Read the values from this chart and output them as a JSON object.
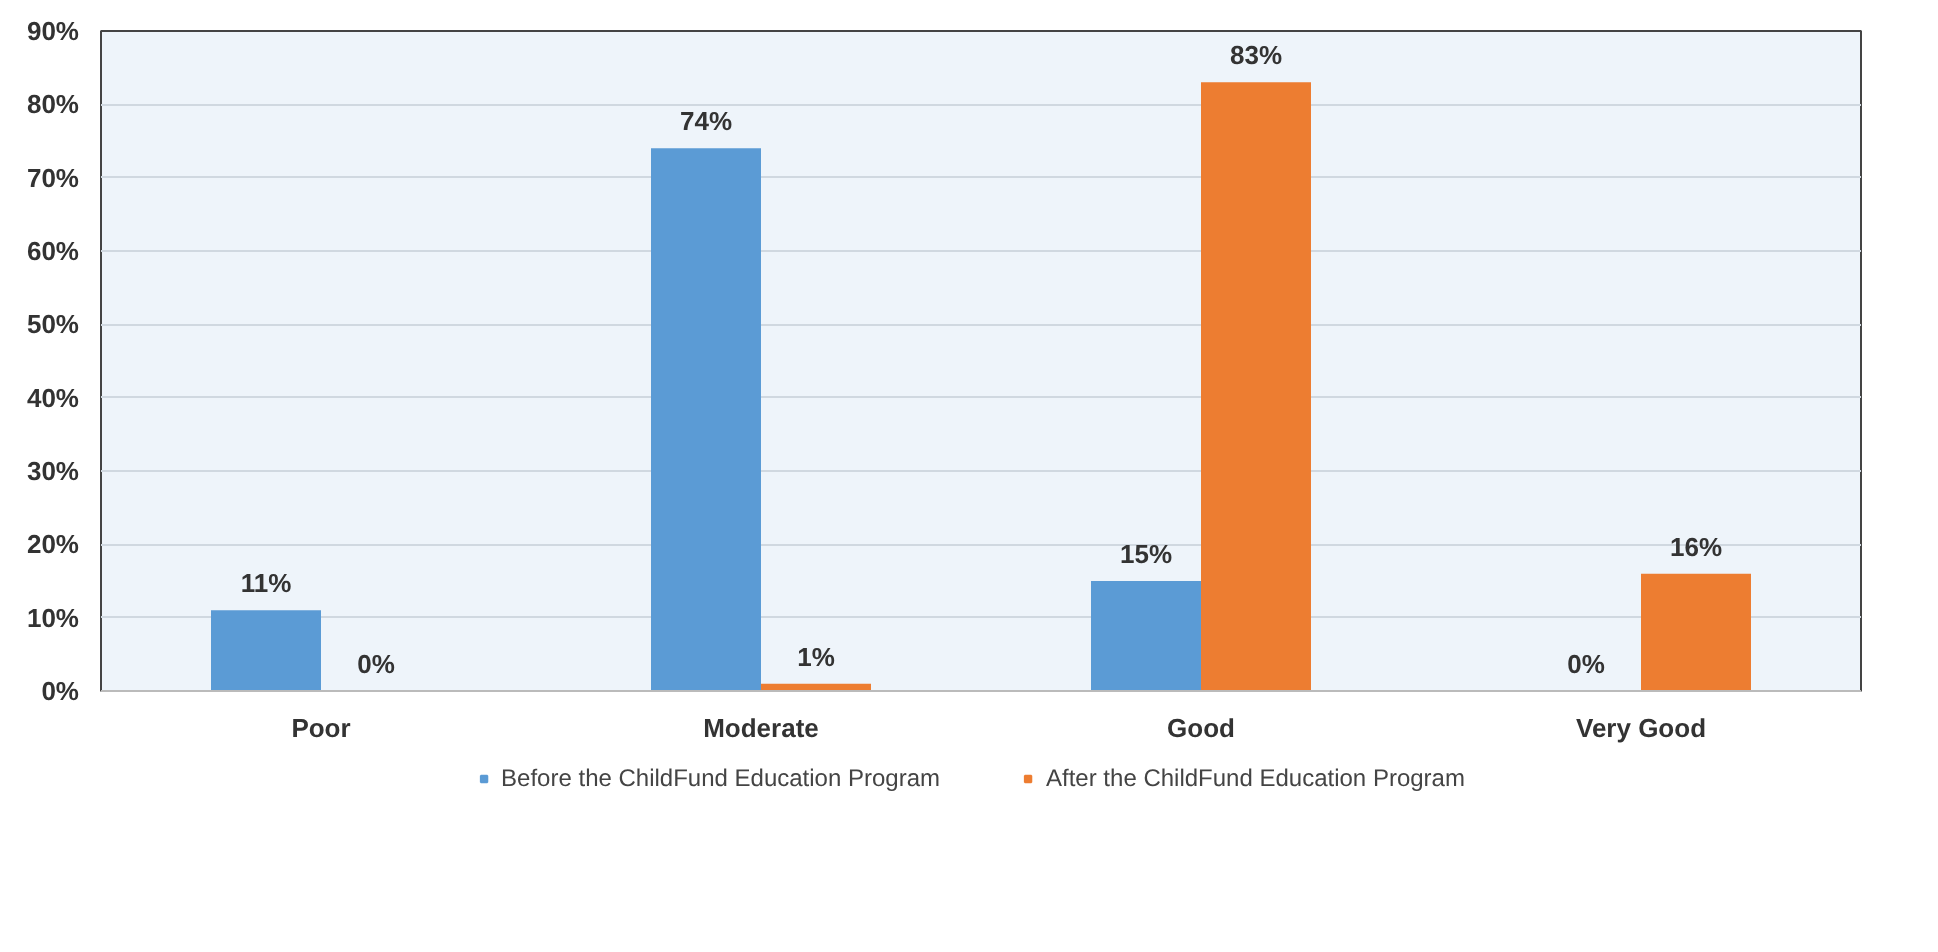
{
  "chart_data": {
    "type": "bar",
    "categories": [
      "Poor",
      "Moderate",
      "Good",
      "Very Good"
    ],
    "series": [
      {
        "name": "Before the ChildFund Education Program",
        "color": "#5b9bd5",
        "values": [
          11,
          74,
          15,
          0
        ]
      },
      {
        "name": "After the ChildFund Education Program",
        "color": "#ed7d31",
        "values": [
          0,
          1,
          83,
          16
        ]
      }
    ],
    "ylim": [
      0,
      90
    ],
    "yticks": [
      {
        "value": 0,
        "label": "0%"
      },
      {
        "value": 10,
        "label": "10%"
      },
      {
        "value": 20,
        "label": "20%"
      },
      {
        "value": 30,
        "label": "30%"
      },
      {
        "value": 40,
        "label": "40%"
      },
      {
        "value": 50,
        "label": "50%"
      },
      {
        "value": 60,
        "label": "60%"
      },
      {
        "value": 70,
        "label": "70%"
      },
      {
        "value": 80,
        "label": "80%"
      },
      {
        "value": 90,
        "label": "90%"
      }
    ],
    "value_labels": [
      [
        "11%",
        "74%",
        "15%",
        "0%"
      ],
      [
        "0%",
        "1%",
        "83%",
        "16%"
      ]
    ],
    "grid": "y",
    "legend": "bottom"
  }
}
